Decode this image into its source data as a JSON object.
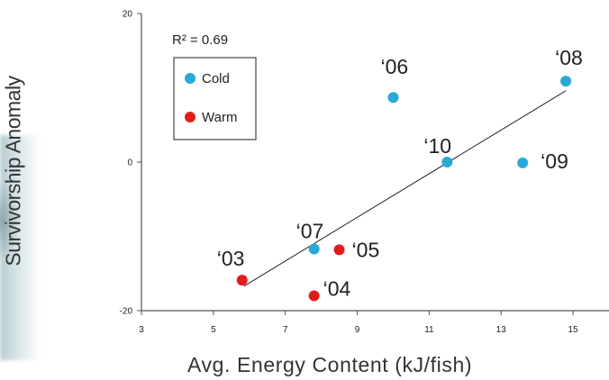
{
  "chart_data": {
    "type": "scatter",
    "title": "",
    "xlabel": "Avg. Energy Content (kJ/fish)",
    "ylabel": "Survivorship Anomaly",
    "xlim": [
      3,
      16
    ],
    "ylim": [
      -20,
      20
    ],
    "x_ticks": [
      3,
      5,
      7,
      9,
      11,
      13,
      15
    ],
    "y_ticks": [
      20,
      0,
      -20
    ],
    "grid": false,
    "legend_position": "top-left",
    "r_squared_label": "R² = 0.69",
    "colors": {
      "Cold": "#28a9d6",
      "Warm": "#e21b1b",
      "trendline": "#222222"
    },
    "series": [
      {
        "name": "Cold",
        "points": [
          {
            "label": "‘06",
            "x": 10.0,
            "y": 8.7
          },
          {
            "label": "‘08",
            "x": 14.8,
            "y": 10.9
          },
          {
            "label": "‘10",
            "x": 11.5,
            "y": 0.0
          },
          {
            "label": "‘09",
            "x": 13.6,
            "y": -0.1
          },
          {
            "label": "‘07",
            "x": 7.8,
            "y": -11.7
          }
        ]
      },
      {
        "name": "Warm",
        "points": [
          {
            "label": "‘05",
            "x": 8.5,
            "y": -11.8
          },
          {
            "label": "‘03",
            "x": 5.8,
            "y": -15.9
          },
          {
            "label": "‘04",
            "x": 7.8,
            "y": -18.0
          }
        ]
      }
    ],
    "trendline": {
      "x": [
        5.85,
        14.8
      ],
      "y": [
        -16.7,
        9.6
      ]
    }
  }
}
